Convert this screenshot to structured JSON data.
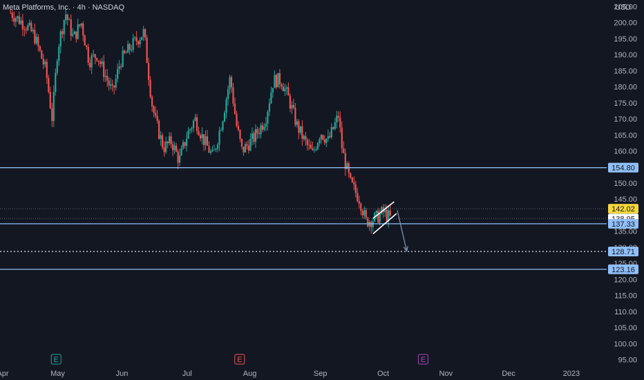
{
  "header": {
    "symbol_title": "Meta Platforms, Inc. · 4h · NASDAQ"
  },
  "colors": {
    "background": "#131722",
    "up": "#26a69a",
    "down": "#ef5350",
    "level_line": "#90bff9",
    "channel": "#ffffff",
    "axis_text": "#b2b5be",
    "earnings_green": "#26a69a",
    "earnings_red": "#ef5350",
    "earnings_purple": "#ab47bc"
  },
  "chart_data": {
    "type": "candlestick",
    "title": "Meta Platforms, Inc. · 4h · NASDAQ",
    "currency": "USD",
    "ylim": [
      93,
      207
    ],
    "y_ticks": [
      95,
      100,
      105,
      110,
      115,
      120,
      125,
      130,
      135,
      140,
      145,
      150,
      155,
      160,
      165,
      170,
      175,
      180,
      185,
      190,
      195,
      200,
      205
    ],
    "y_tick_labels": [
      "95.00",
      "100.00",
      "105.00",
      "110.00",
      "115.00",
      "120.00",
      "125.00",
      "130.00",
      "135.00",
      "140.00",
      "145.00",
      "150.00",
      "155.00",
      "160.00",
      "165.00",
      "170.00",
      "175.00",
      "180.00",
      "185.00",
      "190.00",
      "195.00",
      "200.00",
      "205.00"
    ],
    "x_labels": [
      "Apr",
      "May",
      "Jun",
      "Jul",
      "Aug",
      "Sep",
      "Oct",
      "Nov",
      "Dec",
      "2023"
    ],
    "x_label_index": [
      0,
      7,
      15.2,
      23.5,
      31.5,
      40.5,
      48.5,
      56.5,
      64.5,
      72.5
    ],
    "x_range_index": [
      0,
      77
    ],
    "price_path": [
      [
        1,
        203
      ],
      [
        3,
        199
      ],
      [
        4,
        196
      ],
      [
        5.5,
        185
      ],
      [
        6.3,
        170
      ],
      [
        7,
        192
      ],
      [
        8,
        203
      ],
      [
        9,
        195
      ],
      [
        10,
        200
      ],
      [
        11,
        188
      ],
      [
        12,
        190
      ],
      [
        14,
        178
      ],
      [
        15,
        188
      ],
      [
        16.5,
        193
      ],
      [
        18,
        197
      ],
      [
        19,
        175
      ],
      [
        19.5,
        169
      ],
      [
        20.5,
        161
      ],
      [
        21.5,
        163
      ],
      [
        22.5,
        157
      ],
      [
        23.5,
        165
      ],
      [
        24.5,
        170
      ],
      [
        25.5,
        164
      ],
      [
        26.8,
        158
      ],
      [
        28,
        170
      ],
      [
        29,
        183
      ],
      [
        29.8,
        168
      ],
      [
        30.5,
        160
      ],
      [
        32,
        164
      ],
      [
        33.5,
        170
      ],
      [
        34.5,
        182
      ],
      [
        35.5,
        182
      ],
      [
        36.5,
        176
      ],
      [
        37.5,
        168
      ],
      [
        38.5,
        163
      ],
      [
        39.5,
        159
      ],
      [
        40.5,
        166
      ],
      [
        41.5,
        163
      ],
      [
        42.8,
        171
      ],
      [
        43.3,
        160
      ],
      [
        44.3,
        150
      ],
      [
        45.5,
        145
      ],
      [
        46.3,
        138
      ],
      [
        47.5,
        139
      ],
      [
        48.5,
        141
      ],
      [
        49.5,
        138.9
      ]
    ],
    "last_price": 138.95,
    "horizontal_levels": [
      154.8,
      137.33,
      123.16
    ],
    "projected_target": 128.71,
    "price_tags": [
      {
        "label": "154.80",
        "value": 154.8,
        "style": "level"
      },
      {
        "label": "142.02",
        "value": 142.02,
        "style": "highlight"
      },
      {
        "label": "138.95",
        "value": 138.95,
        "style": "last"
      },
      {
        "label": "137.33",
        "value": 137.33,
        "style": "level"
      },
      {
        "label": "128.71",
        "value": 128.71,
        "style": "level"
      },
      {
        "label": "123.16",
        "value": 123.16,
        "style": "level"
      }
    ],
    "dotted_levels": [
      142.02,
      138.95,
      128.71
    ],
    "channel": {
      "upper": [
        [
          47.2,
          139
        ],
        [
          49.9,
          144.2
        ]
      ],
      "lower": [
        [
          47.2,
          134.2
        ],
        [
          50.2,
          140.5
        ]
      ]
    },
    "arrow": {
      "from": [
        50.3,
        141.5
      ],
      "to": [
        51.5,
        128.9
      ]
    },
    "earnings_markers": [
      {
        "label": "E",
        "x_index": 6.8,
        "color": "green"
      },
      {
        "label": "E",
        "x_index": 30.2,
        "color": "red"
      },
      {
        "label": "E",
        "x_index": 53.6,
        "color": "purple"
      }
    ]
  }
}
